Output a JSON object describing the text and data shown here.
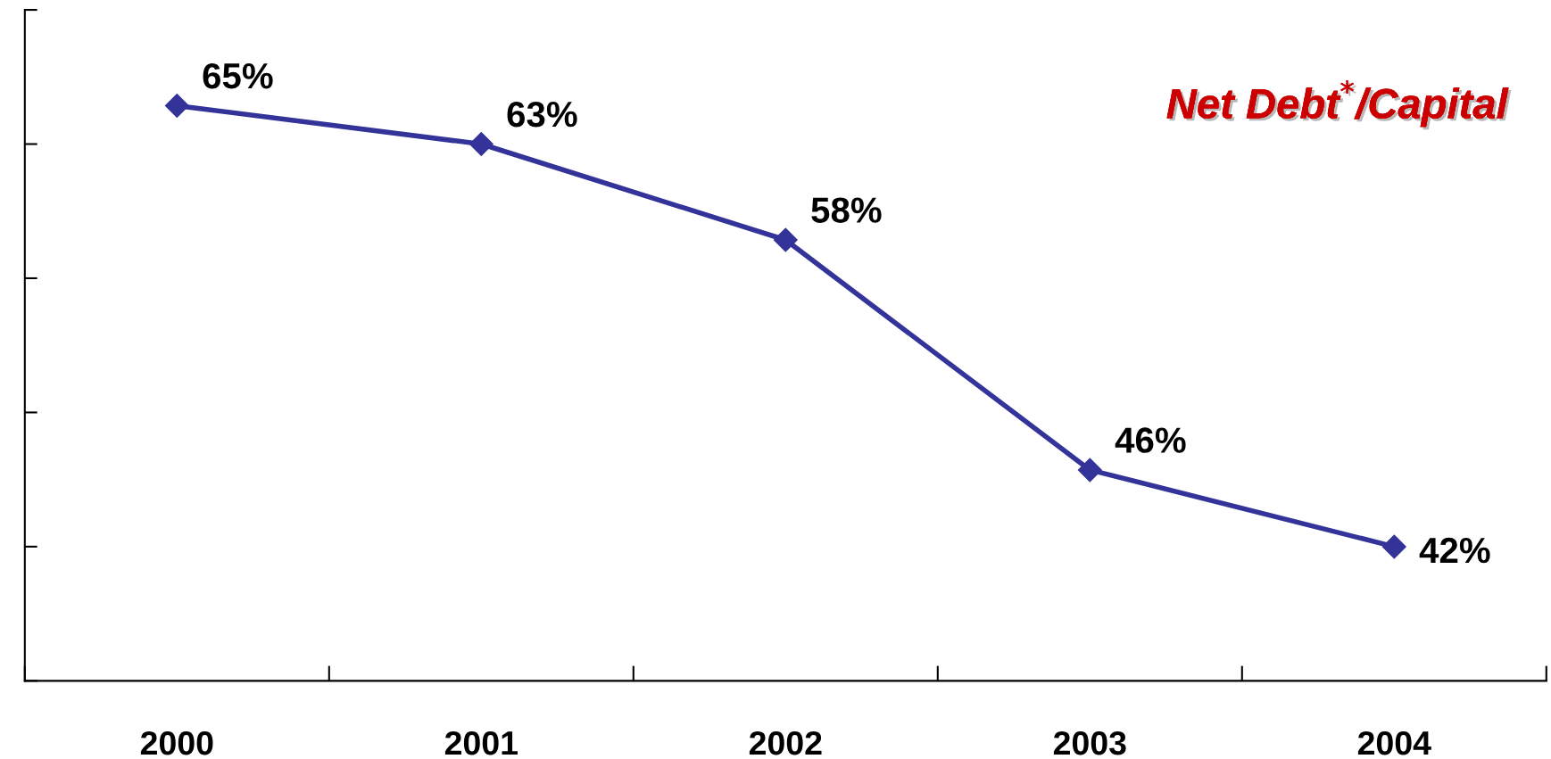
{
  "chart_data": {
    "type": "line",
    "title": "Net Debt$^{*}$/Capital",
    "categories": [
      "2000",
      "2001",
      "2002",
      "2003",
      "2004"
    ],
    "series": [
      {
        "color": "#333399",
        "values": [
          65,
          63,
          58,
          46,
          42
        ],
        "value_labels": [
          "65%",
          "63%",
          "58%",
          "46%",
          "42%"
        ]
      }
    ],
    "ylim": [
      35,
      70
    ],
    "yticks": [
      {
        "value": 35,
        "label": null
      },
      {
        "value": 42,
        "label": null
      },
      {
        "value": 49,
        "label": null
      },
      {
        "value": 56,
        "label": null
      },
      {
        "value": 63,
        "label": null
      },
      {
        "value": 70,
        "label": null
      }
    ],
    "marker": "diamond",
    "grid": false,
    "legend": false
  }
}
